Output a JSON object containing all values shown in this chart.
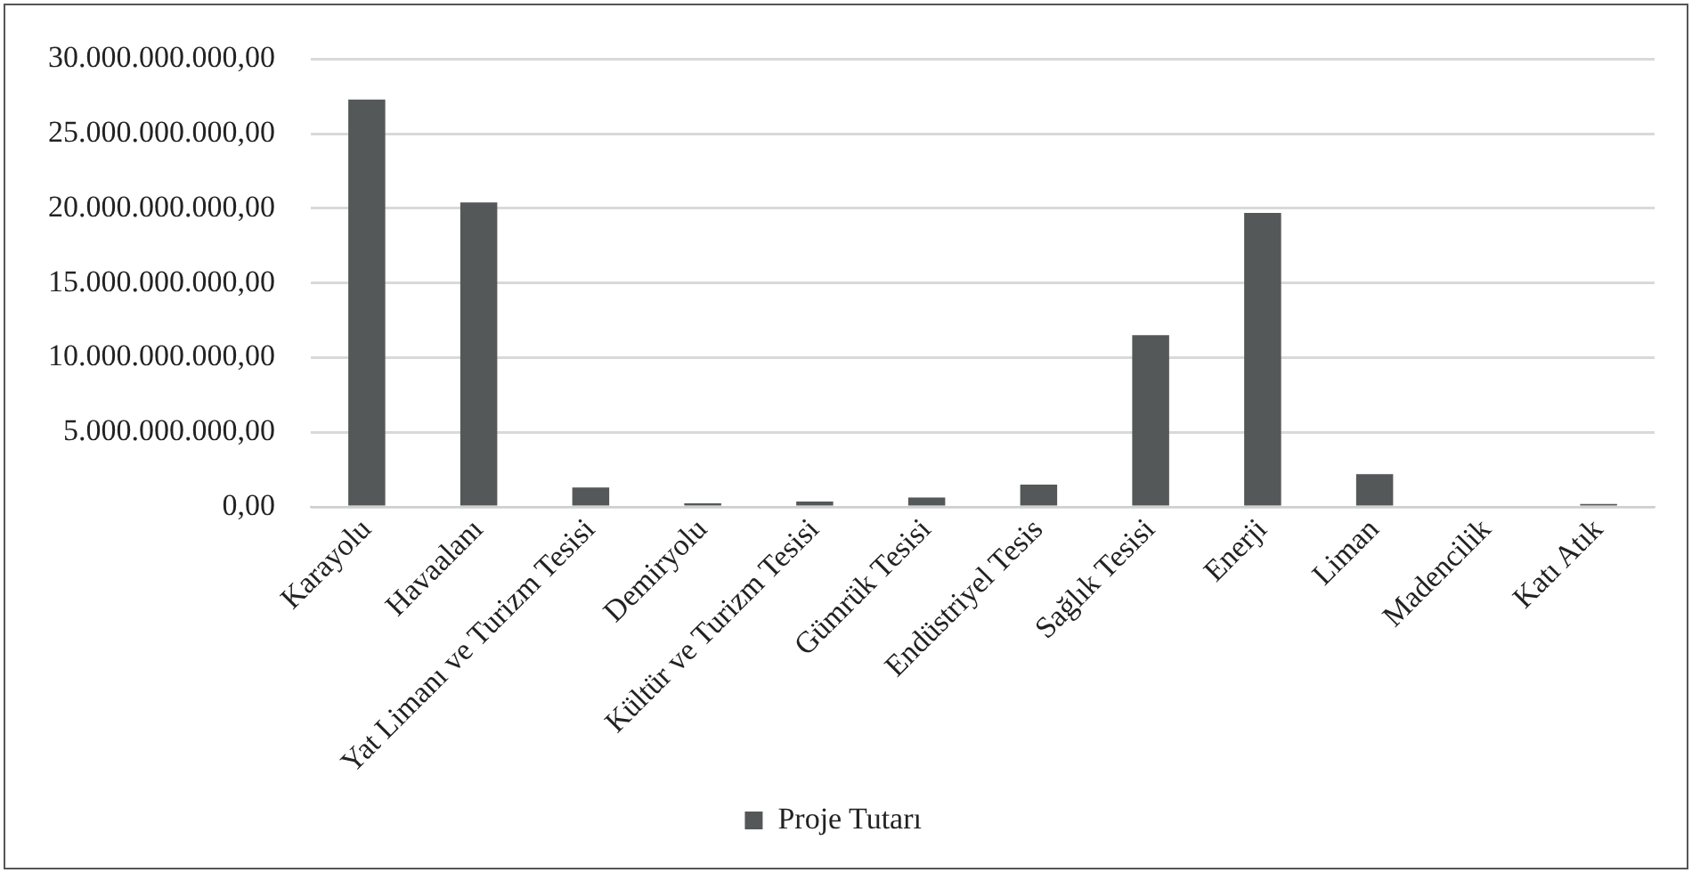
{
  "chart_data": {
    "type": "bar",
    "categories": [
      "Karayolu",
      "Havaalanı",
      "Yat Limanı ve Turizm Tesisi",
      "Demiryolu",
      "Kültür ve Turizm Tesisi",
      "Gümrük Tesisi",
      "Endüstriyel Tesis",
      "Sağlık Tesisi",
      "Enerji",
      "Liman",
      "Madencilik",
      "Katı Atık"
    ],
    "series": [
      {
        "name": "Proje Tutarı",
        "color": "#555859",
        "values": [
          27300000000,
          20400000000,
          1300000000,
          240000000,
          360000000,
          630000000,
          1500000000,
          11500000000,
          19700000000,
          2200000000,
          0,
          200000000
        ]
      }
    ],
    "ylim": [
      0,
      30000000000
    ],
    "yticks": [
      {
        "value": 0,
        "label": "0,00"
      },
      {
        "value": 5000000000,
        "label": "5.000.000.000,00"
      },
      {
        "value": 10000000000,
        "label": "10.000.000.000,00"
      },
      {
        "value": 15000000000,
        "label": "15.000.000.000,00"
      },
      {
        "value": 20000000000,
        "label": "20.000.000.000,00"
      },
      {
        "value": 25000000000,
        "label": "25.000.000.000,00"
      },
      {
        "value": 30000000000,
        "label": "30.000.000.000,00"
      }
    ],
    "grid": "y",
    "legend": "bottom"
  }
}
